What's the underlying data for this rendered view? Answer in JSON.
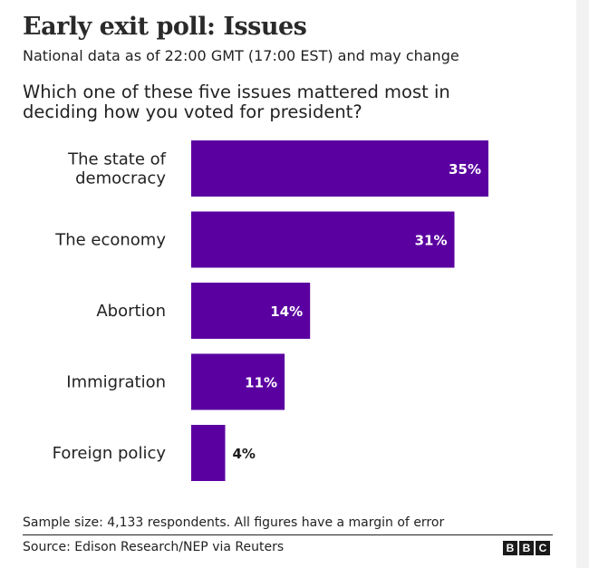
{
  "header": {
    "title": "Early exit poll: Issues",
    "subtitle": "National data as of 22:00 GMT (17:00 EST) and may change",
    "question": "Which one of these five issues mattered most in deciding how you voted for president?"
  },
  "chart_data": {
    "type": "bar",
    "orientation": "horizontal",
    "title": "Which one of these five issues mattered most in deciding how you voted for president?",
    "categories": [
      [
        "The state of",
        "democracy"
      ],
      [
        "The economy"
      ],
      [
        "Abortion"
      ],
      [
        "Immigration"
      ],
      [
        "Foreign policy"
      ]
    ],
    "values": [
      35,
      31,
      14,
      11,
      4
    ],
    "labels": [
      "35%",
      "31%",
      "14%",
      "11%",
      "4%"
    ],
    "unit": "%",
    "xlim": [
      0,
      35
    ],
    "bar_color": "#5a00a0",
    "label_color_inside": "#ffffff",
    "label_color_outside": "#1a1a1a"
  },
  "footer": {
    "note": "Sample size: 4,133 respondents. All figures have a margin of error",
    "source": "Source: Edison Research/NEP via Reuters",
    "logo_letters": [
      "B",
      "B",
      "C"
    ]
  }
}
